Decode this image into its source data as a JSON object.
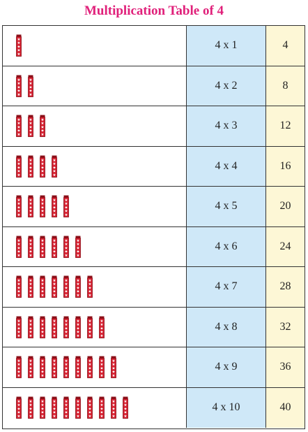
{
  "title": "Multiplication Table of 4",
  "colors": {
    "title": "#e0207a",
    "bar_fill": "#d42030",
    "bar_dark": "#8a0f18",
    "expression_bg": "#cfe8f8",
    "product_bg": "#fdf7d6"
  },
  "icon": "red-star-stick-icon",
  "rows": [
    {
      "count": 1,
      "expression": "4 x 1",
      "product": "4"
    },
    {
      "count": 2,
      "expression": "4 x 2",
      "product": "8"
    },
    {
      "count": 3,
      "expression": "4 x 3",
      "product": "12"
    },
    {
      "count": 4,
      "expression": "4 x 4",
      "product": "16"
    },
    {
      "count": 5,
      "expression": "4 x 5",
      "product": "20"
    },
    {
      "count": 6,
      "expression": "4 x 6",
      "product": "24"
    },
    {
      "count": 7,
      "expression": "4 x 7",
      "product": "28"
    },
    {
      "count": 8,
      "expression": "4 x 8",
      "product": "32"
    },
    {
      "count": 9,
      "expression": "4 x 9",
      "product": "36"
    },
    {
      "count": 10,
      "expression": "4 x 10",
      "product": "40"
    }
  ]
}
